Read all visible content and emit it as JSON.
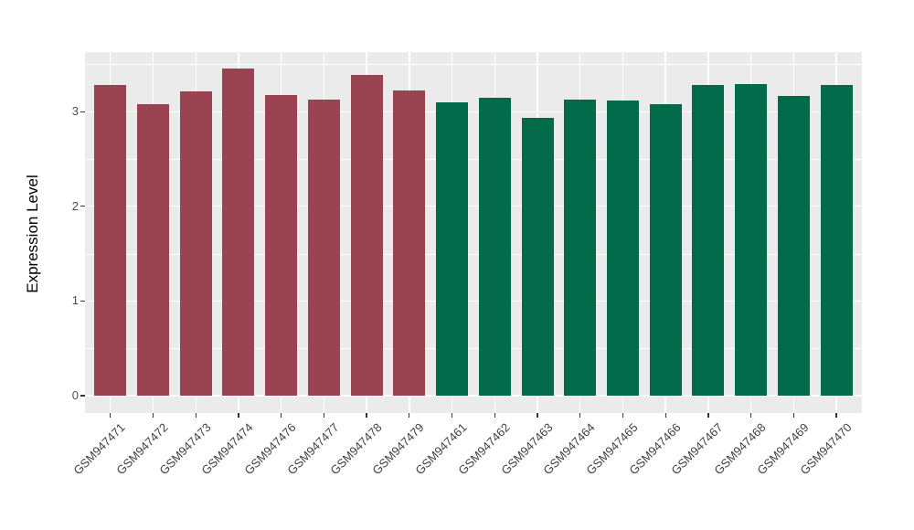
{
  "figure": {
    "background": "#FFFFFF",
    "panel_background": "#EBEBEB",
    "gridline_color": "#FFFFFF",
    "tick_color": "#333333",
    "axis_text_color": "#4D4D4D",
    "axis_title_color": "#000000"
  },
  "chart_data": {
    "type": "bar",
    "title": "",
    "xlabel": "",
    "ylabel": "Expression Level",
    "y_ticks": [
      0,
      1,
      2,
      3
    ],
    "y_minor_ticks": [
      0.5,
      1.5,
      2.5,
      3.5
    ],
    "ylim": [
      -0.18,
      3.63
    ],
    "grid": true,
    "legend": false,
    "group_colors": {
      "group_a": "#9A4452",
      "group_b": "#046B4A"
    },
    "bars": [
      {
        "label": "GSM947471",
        "value": 3.28,
        "group": "group_a"
      },
      {
        "label": "GSM947472",
        "value": 3.08,
        "group": "group_a"
      },
      {
        "label": "GSM947473",
        "value": 3.21,
        "group": "group_a"
      },
      {
        "label": "GSM947474",
        "value": 3.46,
        "group": "group_a"
      },
      {
        "label": "GSM947476",
        "value": 3.18,
        "group": "group_a"
      },
      {
        "label": "GSM947477",
        "value": 3.13,
        "group": "group_a"
      },
      {
        "label": "GSM947478",
        "value": 3.39,
        "group": "group_a"
      },
      {
        "label": "GSM947479",
        "value": 3.22,
        "group": "group_a"
      },
      {
        "label": "GSM947461",
        "value": 3.1,
        "group": "group_b"
      },
      {
        "label": "GSM947462",
        "value": 3.15,
        "group": "group_b"
      },
      {
        "label": "GSM947463",
        "value": 2.93,
        "group": "group_b"
      },
      {
        "label": "GSM947464",
        "value": 3.13,
        "group": "group_b"
      },
      {
        "label": "GSM947465",
        "value": 3.12,
        "group": "group_b"
      },
      {
        "label": "GSM947466",
        "value": 3.08,
        "group": "group_b"
      },
      {
        "label": "GSM947467",
        "value": 3.28,
        "group": "group_b"
      },
      {
        "label": "GSM947468",
        "value": 3.29,
        "group": "group_b"
      },
      {
        "label": "GSM947469",
        "value": 3.17,
        "group": "group_b"
      },
      {
        "label": "GSM947470",
        "value": 3.28,
        "group": "group_b"
      }
    ]
  }
}
